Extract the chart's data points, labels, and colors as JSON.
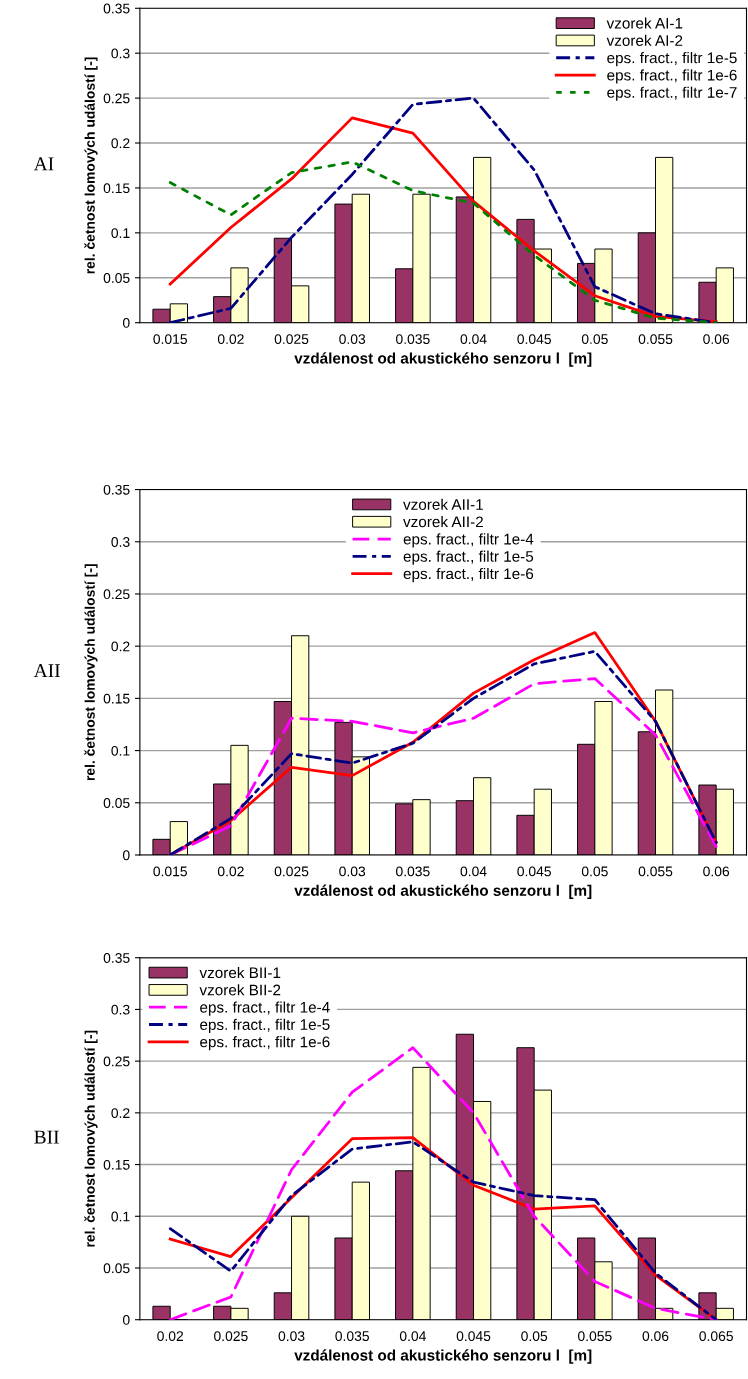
{
  "chart_data": [
    {
      "type": "bar",
      "annotations": [
        "AI"
      ],
      "xlabel": "vzdálenost od akustického senzoru l  [m]",
      "ylabel": "rel. četnost lomových událostí [-]",
      "categories": [
        "0.015",
        "0.02",
        "0.025",
        "0.03",
        "0.035",
        "0.04",
        "0.045",
        "0.05",
        "0.055",
        "0.06"
      ],
      "series": [
        {
          "name": "vzorek AI-1",
          "color": "#993366",
          "values": [
            0.015,
            0.029,
            0.094,
            0.132,
            0.06,
            0.14,
            0.115,
            0.066,
            0.1,
            0.045
          ]
        },
        {
          "name": "vzorek AI-2",
          "color": "#ffffcc",
          "values": [
            0.021,
            0.061,
            0.041,
            0.143,
            0.143,
            0.184,
            0.082,
            0.082,
            0.184,
            0.061
          ]
        },
        {
          "name": "eps. fract., filtr 1e-5",
          "type": "line",
          "line_style": "dashdot",
          "color": "#000080",
          "values": [
            0,
            0.016,
            0.095,
            0.165,
            0.243,
            0.25,
            0.17,
            0.04,
            0.01,
            0
          ]
        },
        {
          "name": "eps. fract., filtr 1e-6",
          "type": "line",
          "line_style": "solid",
          "color": "#ff0000",
          "values": [
            0.043,
            0.106,
            0.16,
            0.228,
            0.211,
            0.135,
            0.08,
            0.03,
            0.007,
            0.001
          ]
        },
        {
          "name": "eps. fract., filtr 1e-7",
          "type": "line",
          "line_style": "dotted",
          "color": "#008000",
          "values": [
            0.156,
            0.12,
            0.167,
            0.179,
            0.147,
            0.133,
            0.075,
            0.025,
            0.005,
            0
          ]
        }
      ],
      "ylim": [
        0,
        0.35
      ],
      "yticks": [
        0,
        0.05,
        0.1,
        0.15,
        0.2,
        0.25,
        0.3,
        0.35
      ],
      "grid": "y",
      "legend": "top right"
    },
    {
      "type": "bar",
      "annotations": [
        "AII"
      ],
      "xlabel": "vzdálenost od akustického senzoru l  [m]",
      "ylabel": "rel. četnost lomových událostí [-]",
      "categories": [
        "0.015",
        "0.02",
        "0.025",
        "0.03",
        "0.035",
        "0.04",
        "0.045",
        "0.05",
        "0.055",
        "0.06"
      ],
      "series": [
        {
          "name": "vzorek AII-1",
          "color": "#993366",
          "values": [
            0.015,
            0.068,
            0.147,
            0.127,
            0.049,
            0.052,
            0.038,
            0.106,
            0.118,
            0.067
          ]
        },
        {
          "name": "vzorek AII-2",
          "color": "#ffffcc",
          "values": [
            0.032,
            0.105,
            0.21,
            0.094,
            0.053,
            0.074,
            0.063,
            0.147,
            0.158,
            0.063
          ]
        },
        {
          "name": "eps. fract., filtr 1e-4",
          "type": "line",
          "line_style": "dashed",
          "color": "#ff00ff",
          "values": [
            0,
            0.028,
            0.131,
            0.128,
            0.117,
            0.131,
            0.164,
            0.169,
            0.115,
            0.008
          ]
        },
        {
          "name": "eps. fract., filtr 1e-5",
          "type": "line",
          "line_style": "dashdot",
          "color": "#000080",
          "values": [
            0,
            0.035,
            0.097,
            0.088,
            0.107,
            0.15,
            0.183,
            0.195,
            0.128,
            0.012
          ]
        },
        {
          "name": "eps. fract., filtr 1e-6",
          "type": "line",
          "line_style": "solid",
          "color": "#ff0000",
          "values": [
            0,
            0.033,
            0.084,
            0.076,
            0.108,
            0.155,
            0.187,
            0.213,
            0.128,
            0.012
          ]
        }
      ],
      "ylim": [
        0,
        0.35
      ],
      "yticks": [
        0,
        0.05,
        0.1,
        0.15,
        0.2,
        0.25,
        0.3,
        0.35
      ],
      "grid": "y",
      "legend": "top"
    },
    {
      "type": "bar",
      "annotations": [
        "BII"
      ],
      "xlabel": "vzdálenost od akustického senzoru l  [m]",
      "ylabel": "rel. četnost lomových událostí [-]",
      "categories": [
        "0.02",
        "0.025",
        "0.03",
        "0.035",
        "0.04",
        "0.045",
        "0.05",
        "0.055",
        "0.06",
        "0.065"
      ],
      "series": [
        {
          "name": "vzorek BII-1",
          "color": "#993366",
          "values": [
            0.013,
            0.013,
            0.026,
            0.079,
            0.144,
            0.276,
            0.263,
            0.079,
            0.079,
            0.026
          ]
        },
        {
          "name": "vzorek BII-2",
          "color": "#ffffcc",
          "values": [
            0,
            0.011,
            0.1,
            0.133,
            0.244,
            0.211,
            0.222,
            0.056,
            0.011,
            0.011
          ]
        },
        {
          "name": "eps. fract., filtr 1e-4",
          "type": "line",
          "line_style": "dashed",
          "color": "#ff00ff",
          "values": [
            0,
            0.022,
            0.145,
            0.22,
            0.263,
            0.2,
            0.1,
            0.037,
            0.011,
            0
          ]
        },
        {
          "name": "eps. fract., filtr 1e-5",
          "type": "line",
          "line_style": "dashdot",
          "color": "#000080",
          "values": [
            0.088,
            0.047,
            0.12,
            0.165,
            0.172,
            0.133,
            0.12,
            0.116,
            0.045,
            0
          ]
        },
        {
          "name": "eps. fract., filtr 1e-6",
          "type": "line",
          "line_style": "solid",
          "color": "#ff0000",
          "values": [
            0.078,
            0.061,
            0.118,
            0.175,
            0.176,
            0.13,
            0.107,
            0.11,
            0.043,
            0
          ]
        }
      ],
      "ylim": [
        0,
        0.35
      ],
      "yticks": [
        0,
        0.05,
        0.1,
        0.15,
        0.2,
        0.25,
        0.3,
        0.35
      ],
      "grid": "y",
      "legend": "top left"
    }
  ]
}
